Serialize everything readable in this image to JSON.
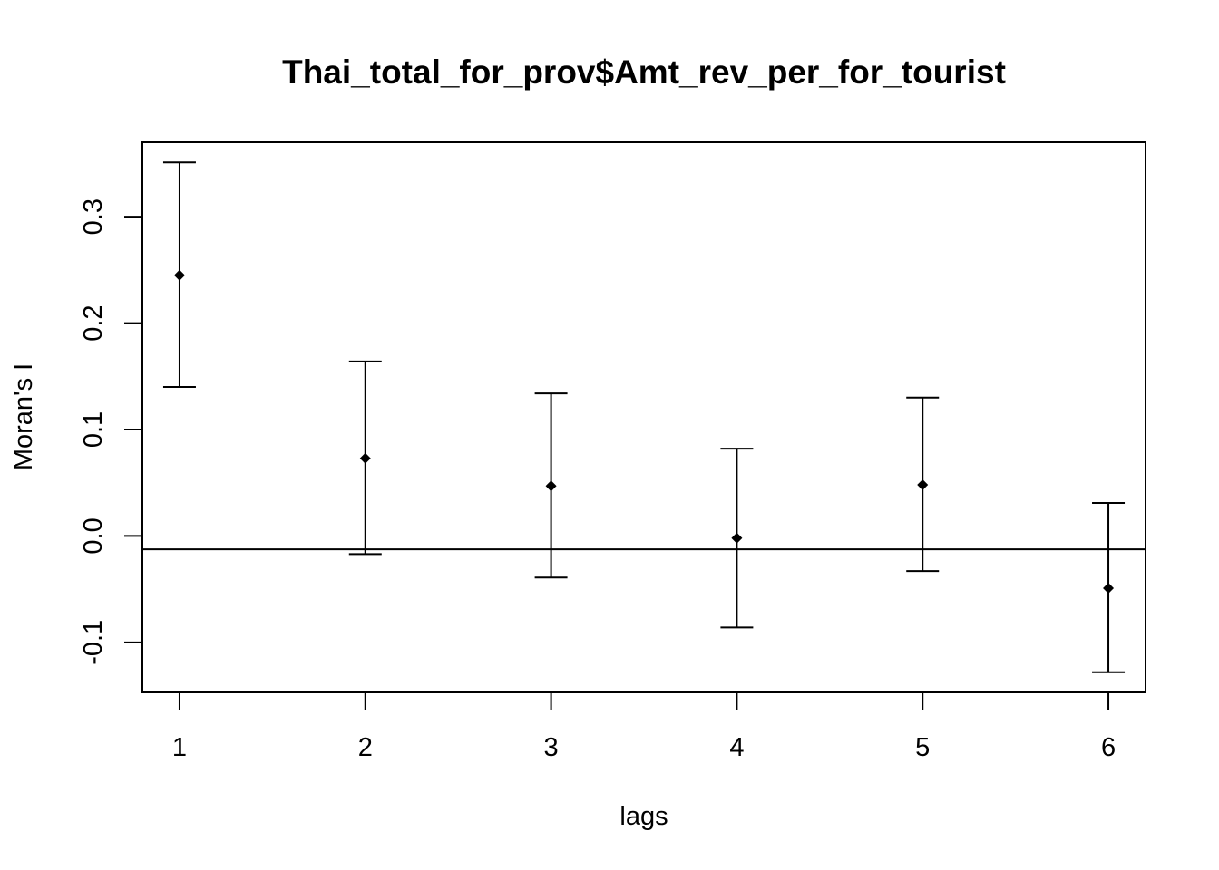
{
  "chart_data": {
    "type": "scatter",
    "title": "Thai_total_for_prov$Amt_rev_per_for_tourist",
    "xlabel": "lags",
    "ylabel": "Moran's  I",
    "x": [
      1,
      2,
      3,
      4,
      5,
      6
    ],
    "series": [
      {
        "values": [
          0.245,
          0.073,
          0.047,
          -0.002,
          0.048,
          -0.049
        ],
        "lower": [
          0.14,
          -0.017,
          -0.039,
          -0.086,
          -0.033,
          -0.128
        ],
        "upper": [
          0.351,
          0.164,
          0.134,
          0.082,
          0.13,
          0.031
        ]
      }
    ],
    "reference_line": {
      "y": -0.0125
    },
    "x_ticks": [
      "1",
      "2",
      "3",
      "4",
      "5",
      "6"
    ],
    "y_ticks": [
      "-0.1",
      "0.0",
      "0.1",
      "0.2",
      "0.3"
    ],
    "y_tick_values": [
      -0.1,
      0.0,
      0.1,
      0.2,
      0.3
    ],
    "xlim": [
      0.8,
      6.2
    ],
    "ylim": [
      -0.147,
      0.37
    ],
    "grid": false,
    "legend": "none",
    "colors": {
      "marks": "#000000",
      "background": "#ffffff"
    }
  }
}
